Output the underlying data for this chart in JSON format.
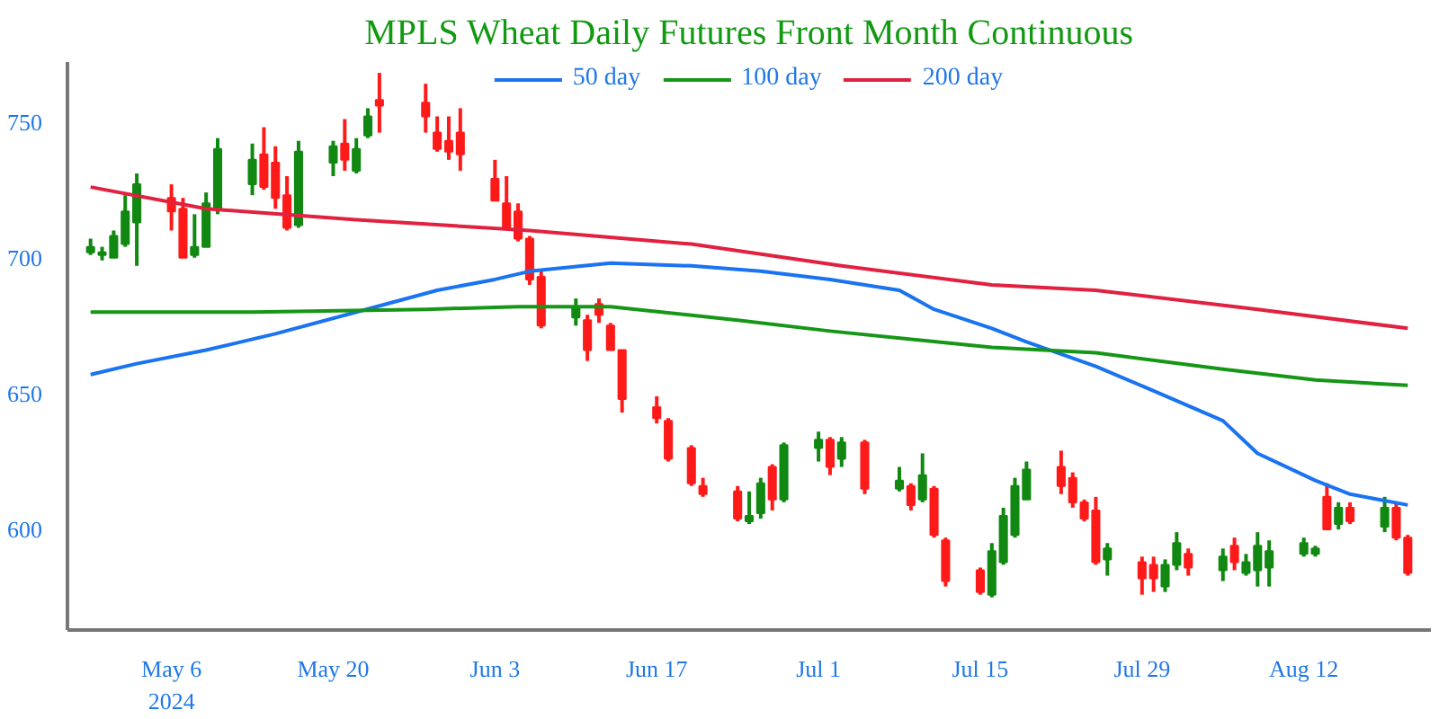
{
  "chart_data": {
    "type": "candlestick",
    "title": "MPLS Wheat Daily Futures Front Month Continuous",
    "x": [
      "2024-04-29",
      "2024-04-30",
      "2024-05-01",
      "2024-05-02",
      "2024-05-03",
      "2024-05-06",
      "2024-05-07",
      "2024-05-08",
      "2024-05-09",
      "2024-05-10",
      "2024-05-13",
      "2024-05-14",
      "2024-05-15",
      "2024-05-16",
      "2024-05-17",
      "2024-05-20",
      "2024-05-21",
      "2024-05-22",
      "2024-05-23",
      "2024-05-24",
      "2024-05-28",
      "2024-05-29",
      "2024-05-30",
      "2024-05-31",
      "2024-06-03",
      "2024-06-04",
      "2024-06-05",
      "2024-06-06",
      "2024-06-07",
      "2024-06-10",
      "2024-06-11",
      "2024-06-12",
      "2024-06-13",
      "2024-06-14",
      "2024-06-17",
      "2024-06-18",
      "2024-06-20",
      "2024-06-21",
      "2024-06-24",
      "2024-06-25",
      "2024-06-26",
      "2024-06-27",
      "2024-06-28",
      "2024-07-01",
      "2024-07-02",
      "2024-07-03",
      "2024-07-05",
      "2024-07-08",
      "2024-07-09",
      "2024-07-10",
      "2024-07-11",
      "2024-07-12",
      "2024-07-15",
      "2024-07-16",
      "2024-07-17",
      "2024-07-18",
      "2024-07-19",
      "2024-07-22",
      "2024-07-23",
      "2024-07-24",
      "2024-07-25",
      "2024-07-26",
      "2024-07-29",
      "2024-07-30",
      "2024-07-31",
      "2024-08-01",
      "2024-08-02",
      "2024-08-05",
      "2024-08-06",
      "2024-08-07",
      "2024-08-08",
      "2024-08-09",
      "2024-08-12",
      "2024-08-13",
      "2024-08-14",
      "2024-08-15",
      "2024-08-16",
      "2024-08-19",
      "2024-08-20",
      "2024-08-21"
    ],
    "ohlc": [
      [
        702,
        707,
        701,
        704
      ],
      [
        701,
        704,
        699,
        702
      ],
      [
        700,
        710,
        700,
        708
      ],
      [
        705,
        723,
        704,
        717
      ],
      [
        713,
        731,
        697,
        727
      ],
      [
        722,
        727,
        710,
        717
      ],
      [
        718,
        722,
        700,
        700
      ],
      [
        701,
        716,
        700,
        704
      ],
      [
        704,
        724,
        704,
        720
      ],
      [
        718,
        744,
        716,
        740
      ],
      [
        727,
        742,
        723,
        736
      ],
      [
        738,
        748,
        725,
        726
      ],
      [
        735,
        741,
        718,
        722
      ],
      [
        723,
        730,
        710,
        711
      ],
      [
        712,
        743,
        711,
        739
      ],
      [
        735,
        743,
        730,
        741
      ],
      [
        742,
        751,
        732,
        736
      ],
      [
        732,
        744,
        731,
        740
      ],
      [
        745,
        755,
        744,
        752
      ],
      [
        758,
        768,
        746,
        756
      ],
      [
        757,
        764,
        746,
        752
      ],
      [
        746,
        752,
        739,
        740
      ],
      [
        743,
        752,
        736,
        739
      ],
      [
        746,
        755,
        732,
        738
      ],
      [
        729,
        736,
        721,
        721
      ],
      [
        720,
        730,
        711,
        711
      ],
      [
        717,
        720,
        706,
        707
      ],
      [
        707,
        708,
        690,
        692
      ],
      [
        693,
        695,
        674,
        675
      ],
      [
        678,
        685,
        675,
        682
      ],
      [
        677,
        679,
        662,
        666
      ],
      [
        683,
        685,
        676,
        679
      ],
      [
        675,
        676,
        666,
        666
      ],
      [
        666,
        666,
        643,
        648
      ],
      [
        645,
        649,
        639,
        641
      ],
      [
        640,
        641,
        625,
        626
      ],
      [
        630,
        631,
        616,
        617
      ],
      [
        616,
        619,
        612,
        613
      ],
      [
        614,
        616,
        603,
        604
      ],
      [
        603,
        614,
        602,
        605
      ],
      [
        606,
        619,
        604,
        617
      ],
      [
        623,
        624,
        607,
        611
      ],
      [
        611,
        632,
        610,
        631
      ],
      [
        630,
        636,
        625,
        633
      ],
      [
        633,
        634,
        620,
        623
      ],
      [
        626,
        634,
        623,
        632
      ],
      [
        632,
        633,
        613,
        615
      ],
      [
        615,
        623,
        614,
        618
      ],
      [
        616,
        617,
        607,
        609
      ],
      [
        611,
        628,
        610,
        620
      ],
      [
        615,
        616,
        597,
        598
      ],
      [
        596,
        597,
        579,
        581
      ],
      [
        585,
        586,
        576,
        577
      ],
      [
        576,
        595,
        575,
        592
      ],
      [
        588,
        608,
        587,
        605
      ],
      [
        598,
        619,
        597,
        616
      ],
      [
        611,
        625,
        611,
        622
      ],
      [
        623,
        629,
        613,
        616
      ],
      [
        619,
        621,
        608,
        610
      ],
      [
        610,
        611,
        603,
        604
      ],
      [
        607,
        612,
        587,
        588
      ],
      [
        589,
        595,
        583,
        593
      ],
      [
        588,
        590,
        576,
        582
      ],
      [
        587,
        590,
        577,
        582
      ],
      [
        579,
        589,
        577,
        587
      ],
      [
        587,
        599,
        585,
        595
      ],
      [
        591,
        593,
        583,
        586
      ],
      [
        585,
        593,
        581,
        590
      ],
      [
        594,
        597,
        585,
        588
      ],
      [
        584,
        591,
        583,
        588
      ],
      [
        585,
        599,
        579,
        594
      ],
      [
        586,
        596,
        579,
        592
      ],
      [
        591,
        597,
        590,
        595
      ],
      [
        591,
        594,
        590,
        593
      ],
      [
        612,
        617,
        600,
        600
      ],
      [
        602,
        610,
        600,
        608
      ],
      [
        608,
        610,
        602,
        603
      ],
      [
        601,
        612,
        599,
        608
      ],
      [
        608,
        610,
        596,
        597
      ],
      [
        597,
        598,
        583,
        584
      ]
    ],
    "colors": [
      "#118811",
      "#118811",
      "#118811",
      "#118811",
      "#118811",
      "#ff1a1a",
      "#ff1a1a",
      "#118811",
      "#118811",
      "#118811",
      "#118811",
      "#ff1a1a",
      "#ff1a1a",
      "#ff1a1a",
      "#118811",
      "#118811",
      "#ff1a1a",
      "#118811",
      "#118811",
      "#ff1a1a",
      "#ff1a1a",
      "#ff1a1a",
      "#ff1a1a",
      "#ff1a1a",
      "#ff1a1a",
      "#ff1a1a",
      "#ff1a1a",
      "#ff1a1a",
      "#ff1a1a",
      "#118811",
      "#ff1a1a",
      "#ff1a1a",
      "#ff1a1a",
      "#ff1a1a",
      "#ff1a1a",
      "#ff1a1a",
      "#ff1a1a",
      "#ff1a1a",
      "#ff1a1a",
      "#118811",
      "#118811",
      "#ff1a1a",
      "#118811",
      "#118811",
      "#ff1a1a",
      "#118811",
      "#ff1a1a",
      "#118811",
      "#ff1a1a",
      "#118811",
      "#ff1a1a",
      "#ff1a1a",
      "#ff1a1a",
      "#118811",
      "#118811",
      "#118811",
      "#118811",
      "#ff1a1a",
      "#ff1a1a",
      "#ff1a1a",
      "#ff1a1a",
      "#118811",
      "#ff1a1a",
      "#ff1a1a",
      "#118811",
      "#118811",
      "#ff1a1a",
      "#118811",
      "#ff1a1a",
      "#118811",
      "#118811",
      "#118811",
      "#118811",
      "#118811",
      "#ff1a1a",
      "#118811",
      "#ff1a1a",
      "#118811",
      "#ff1a1a",
      "#ff1a1a"
    ],
    "series": [
      {
        "name": "50 day",
        "type": "line",
        "color": "#1a73f0",
        "x": [
          "2024-04-29",
          "2024-05-03",
          "2024-05-09",
          "2024-05-15",
          "2024-05-22",
          "2024-05-29",
          "2024-06-03",
          "2024-06-06",
          "2024-06-13",
          "2024-06-20",
          "2024-06-26",
          "2024-07-02",
          "2024-07-08",
          "2024-07-11",
          "2024-07-16",
          "2024-07-19",
          "2024-07-25",
          "2024-07-30",
          "2024-08-05",
          "2024-08-08",
          "2024-08-13",
          "2024-08-16",
          "2024-08-21"
        ],
        "values": [
          657,
          661,
          666,
          672,
          680,
          688,
          692,
          695,
          698,
          697,
          695,
          692,
          688,
          681,
          674,
          669,
          660,
          651,
          640,
          628,
          618,
          613,
          609
        ]
      },
      {
        "name": "100 day",
        "type": "line",
        "color": "#169616",
        "x": [
          "2024-04-29",
          "2024-05-13",
          "2024-05-28",
          "2024-06-05",
          "2024-06-13",
          "2024-06-24",
          "2024-07-02",
          "2024-07-16",
          "2024-07-25",
          "2024-08-05",
          "2024-08-13",
          "2024-08-21"
        ],
        "values": [
          680,
          680,
          681,
          682,
          682,
          677,
          673,
          667,
          665,
          659,
          655,
          653
        ]
      },
      {
        "name": "200 day",
        "type": "line",
        "color": "#e0213f",
        "x": [
          "2024-04-29",
          "2024-05-09",
          "2024-05-22",
          "2024-06-06",
          "2024-06-20",
          "2024-07-03",
          "2024-07-16",
          "2024-07-25",
          "2024-08-08",
          "2024-08-21"
        ],
        "values": [
          726,
          718,
          714,
          710,
          705,
          697,
          690,
          688,
          681,
          674
        ]
      }
    ],
    "xlim": [
      "2024-04-27",
      "2024-08-23"
    ],
    "xticks": [
      {
        "value": "2024-05-06",
        "label": "May 6\n2024"
      },
      {
        "value": "2024-05-20",
        "label": "May 20"
      },
      {
        "value": "2024-06-03",
        "label": "Jun 3"
      },
      {
        "value": "2024-06-17",
        "label": "Jun 17"
      },
      {
        "value": "2024-07-01",
        "label": "Jul 1"
      },
      {
        "value": "2024-07-15",
        "label": "Jul 15"
      },
      {
        "value": "2024-07-29",
        "label": "Jul 29"
      },
      {
        "value": "2024-08-12",
        "label": "Aug 12"
      }
    ],
    "ylim": [
      563,
      772
    ],
    "yticks": [
      600,
      650,
      700,
      750
    ],
    "legend": "top",
    "grid": false
  }
}
